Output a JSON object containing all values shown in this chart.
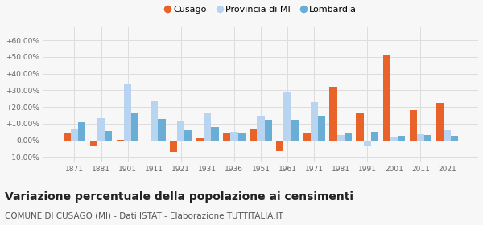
{
  "years": [
    1871,
    1881,
    1901,
    1911,
    1921,
    1931,
    1936,
    1951,
    1961,
    1971,
    1981,
    1991,
    2001,
    2011,
    2021
  ],
  "cusago": [
    4.5,
    -3.5,
    0.5,
    0.0,
    -7.0,
    1.5,
    4.5,
    7.0,
    -6.5,
    4.0,
    32.0,
    16.0,
    51.0,
    18.0,
    22.5
  ],
  "provincia_mi": [
    6.5,
    13.5,
    34.0,
    23.5,
    12.0,
    16.0,
    5.0,
    15.0,
    29.0,
    23.0,
    3.0,
    -3.5,
    2.0,
    3.5,
    6.0
  ],
  "lombardia": [
    11.0,
    5.5,
    16.0,
    13.0,
    6.0,
    8.0,
    4.5,
    12.5,
    12.5,
    15.0,
    4.0,
    5.0,
    2.5,
    3.0,
    2.5
  ],
  "cusago_color": "#e8622a",
  "provincia_color": "#b8d4f0",
  "lombardia_color": "#6aadd5",
  "ylim": [
    -13,
    68
  ],
  "yticks": [
    -10,
    0,
    10,
    20,
    30,
    40,
    50,
    60
  ],
  "ytick_labels": [
    "-10.00%",
    "0.00%",
    "+10.00%",
    "+20.00%",
    "+30.00%",
    "+40.00%",
    "+50.00%",
    "+60.00%"
  ],
  "title": "Variazione percentuale della popolazione ai censimenti",
  "subtitle": "COMUNE DI CUSAGO (MI) - Dati ISTAT - Elaborazione TUTTITALIA.IT",
  "legend_labels": [
    "Cusago",
    "Provincia di MI",
    "Lombardia"
  ],
  "bar_width": 0.28,
  "bg_color": "#f7f7f7",
  "grid_color": "#dddddd",
  "title_fontsize": 10,
  "subtitle_fontsize": 7.5
}
